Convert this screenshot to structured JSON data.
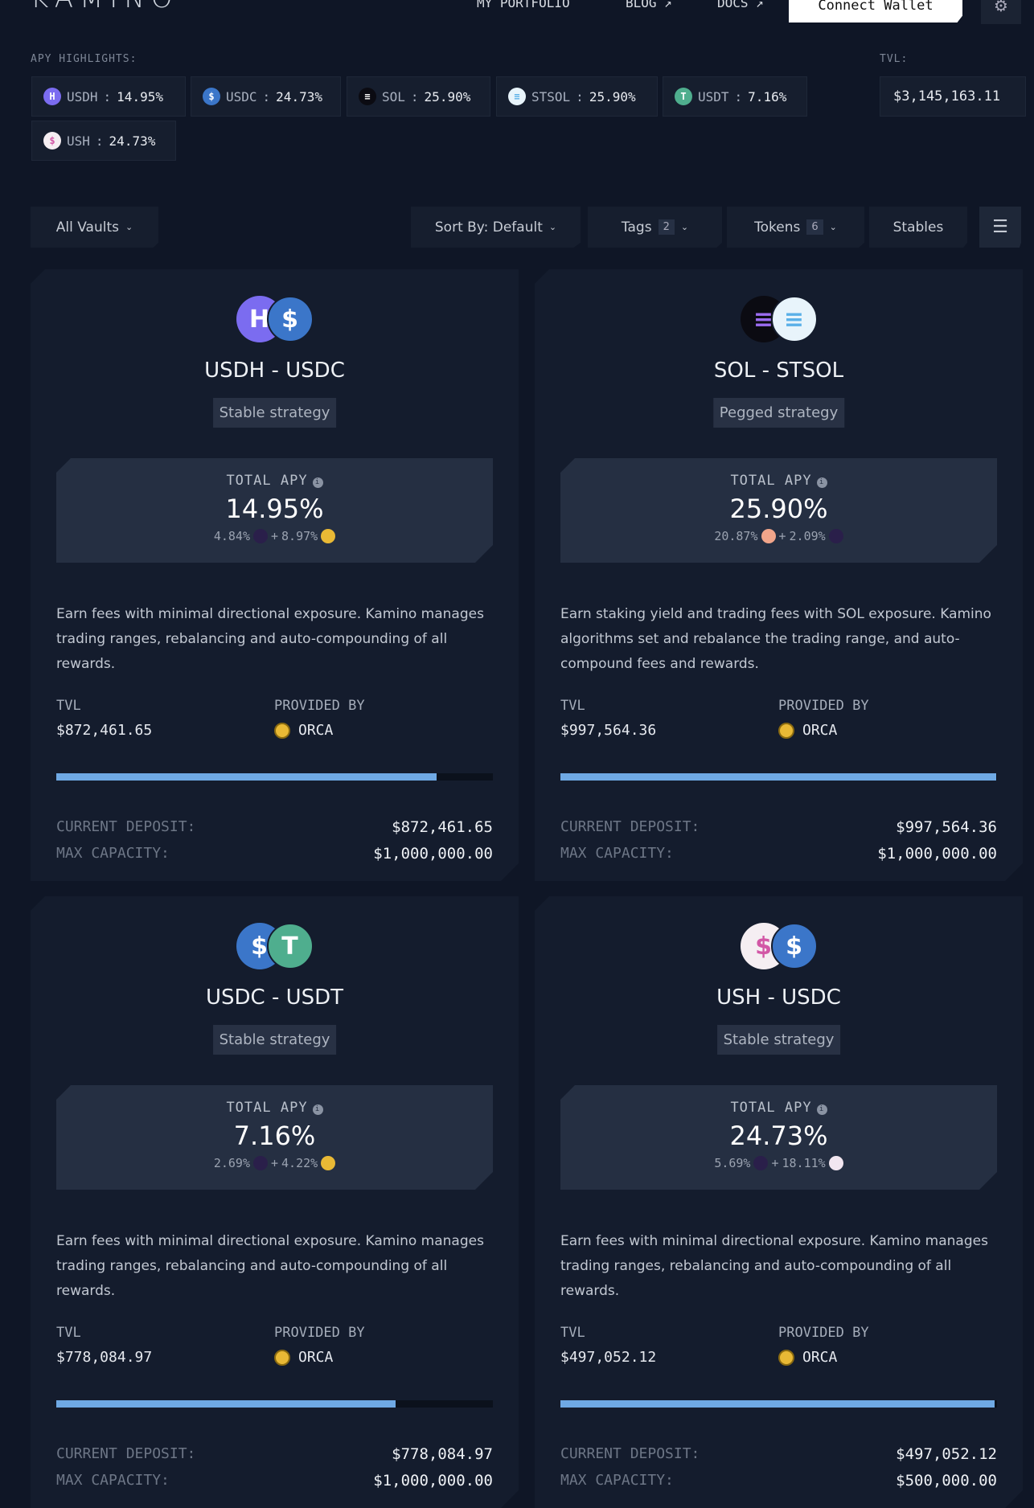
{
  "header": {
    "logo": "KAMINO",
    "nav": [
      "MY PORTFOLIO",
      "BLOG ↗",
      "DOCS ↗"
    ],
    "connect_wallet": "Connect Wallet",
    "settings_icon": "gear-icon"
  },
  "highlights": {
    "label": "APY HIGHLIGHTS:",
    "chips": [
      {
        "token": "USDH",
        "value": "14.95%",
        "color": "#7b6cf0",
        "glyph": "H"
      },
      {
        "token": "USDC",
        "value": "24.73%",
        "color": "#3b76c9",
        "glyph": "$"
      },
      {
        "token": "SOL",
        "value": "25.90%",
        "color": "#0b0b12",
        "glyph": "≡"
      },
      {
        "token": "STSOL",
        "value": "25.90%",
        "color": "#e8f4fb",
        "glyph": "≡"
      },
      {
        "token": "USDT",
        "value": "7.16%",
        "color": "#4fae8e",
        "glyph": "T"
      },
      {
        "token": "USH",
        "value": "24.73%",
        "color": "#f5eef2",
        "glyph": "$"
      }
    ],
    "tvl_label": "TVL:",
    "tvl_value": "$3,145,163.11"
  },
  "filters": {
    "all_vaults": "All Vaults",
    "sort": "Sort By: Default",
    "tags": "Tags",
    "tags_count": "2",
    "tokens": "Tokens",
    "tokens_count": "6",
    "stables": "Stables",
    "layout_icon": "list-view-icon"
  },
  "labels": {
    "total_apy": "TOTAL APY",
    "tvl": "TVL",
    "provided_by": "PROVIDED BY",
    "current_deposit": "CURRENT DEPOSIT:",
    "max_capacity": "MAX CAPACITY:"
  },
  "vaults": [
    {
      "title": "USDH - USDC",
      "strategy": "Stable strategy",
      "apy": "14.95%",
      "apy_a": "4.84%",
      "apy_b": "8.97%",
      "reward_a_color": "#2a1f4a",
      "reward_b_color": "#e9b935",
      "token_a": {
        "glyph": "H",
        "color": "#7b6cf0",
        "fg": "#fff"
      },
      "token_b": {
        "glyph": "$",
        "color": "#3b76c9",
        "fg": "#fff"
      },
      "description": "Earn fees with minimal directional exposure. Kamino manages trading ranges, rebalancing and auto-compounding of all rewards.",
      "tvl": "$872,461.65",
      "provider": "ORCA",
      "current_deposit": "$872,461.65",
      "max_capacity": "$1,000,000.00",
      "fill_percent": 87.2
    },
    {
      "title": "SOL - STSOL",
      "strategy": "Pegged strategy",
      "apy": "25.90%",
      "apy_a": "20.87%",
      "apy_b": "2.09%",
      "reward_a_color": "#f1a58a",
      "reward_b_color": "#2a1f4a",
      "token_a": {
        "glyph": "≡",
        "color": "#0b0b12",
        "fg": "#9b6cf0"
      },
      "token_b": {
        "glyph": "≡",
        "color": "#e8f4fb",
        "fg": "#5ab0e8"
      },
      "description": "Earn staking yield and trading fees with SOL exposure. Kamino algorithms set and rebalance the trading range, and auto-compound fees and rewards.",
      "tvl": "$997,564.36",
      "provider": "ORCA",
      "current_deposit": "$997,564.36",
      "max_capacity": "$1,000,000.00",
      "fill_percent": 99.8
    },
    {
      "title": "USDC - USDT",
      "strategy": "Stable strategy",
      "apy": "7.16%",
      "apy_a": "2.69%",
      "apy_b": "4.22%",
      "reward_a_color": "#2a1f4a",
      "reward_b_color": "#e9b935",
      "token_a": {
        "glyph": "$",
        "color": "#3b76c9",
        "fg": "#fff"
      },
      "token_b": {
        "glyph": "T",
        "color": "#4fae8e",
        "fg": "#fff"
      },
      "description": "Earn fees with minimal directional exposure. Kamino manages trading ranges, rebalancing and auto-compounding of all rewards.",
      "tvl": "$778,084.97",
      "provider": "ORCA",
      "current_deposit": "$778,084.97",
      "max_capacity": "$1,000,000.00",
      "fill_percent": 77.8
    },
    {
      "title": "USH - USDC",
      "strategy": "Stable strategy",
      "apy": "24.73%",
      "apy_a": "5.69%",
      "apy_b": "18.11%",
      "reward_a_color": "#2a1f4a",
      "reward_b_color": "#f2e6f0",
      "token_a": {
        "glyph": "$",
        "color": "#f5eef2",
        "fg": "#d257a6"
      },
      "token_b": {
        "glyph": "$",
        "color": "#3b76c9",
        "fg": "#fff"
      },
      "description": "Earn fees with minimal directional exposure. Kamino manages trading ranges, rebalancing and auto-compounding of all rewards.",
      "tvl": "$497,052.12",
      "provider": "ORCA",
      "current_deposit": "$497,052.12",
      "max_capacity": "$500,000.00",
      "fill_percent": 99.4
    }
  ]
}
